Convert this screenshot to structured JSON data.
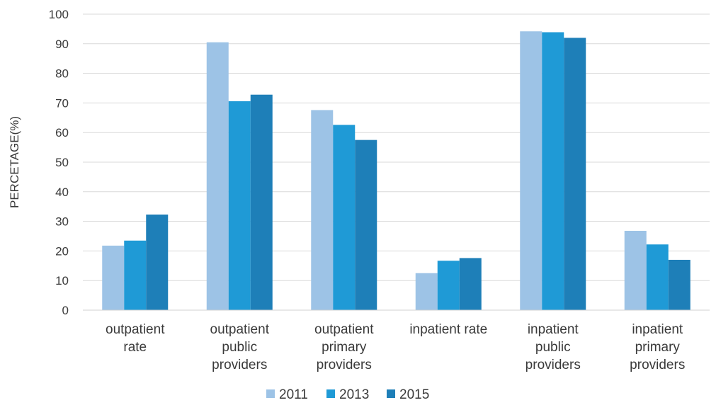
{
  "chart_data": {
    "type": "bar",
    "ylabel": "PERCETAGE(%)",
    "ylim": [
      0,
      100
    ],
    "yticks": [
      0,
      10,
      20,
      30,
      40,
      50,
      60,
      70,
      80,
      90,
      100
    ],
    "grid": "horizontal",
    "legend_position": "bottom",
    "categories": [
      [
        "outpatient",
        "rate"
      ],
      [
        "outpatient",
        "public",
        "providers"
      ],
      [
        "outpatient",
        "primary",
        "providers"
      ],
      [
        "inpatient rate"
      ],
      [
        "inpatient",
        "public",
        "providers"
      ],
      [
        "inpatient",
        "primary",
        "providers"
      ]
    ],
    "series": [
      {
        "name": "2011",
        "color": "#9dc3e6",
        "values": [
          21.8,
          90.5,
          67.6,
          12.5,
          94.2,
          26.8
        ]
      },
      {
        "name": "2013",
        "color": "#1f9ad6",
        "values": [
          23.5,
          70.6,
          62.6,
          16.7,
          93.9,
          22.2
        ]
      },
      {
        "name": "2015",
        "color": "#1e7fb8",
        "values": [
          32.3,
          72.8,
          57.5,
          17.6,
          92.0,
          17.0
        ]
      }
    ]
  }
}
